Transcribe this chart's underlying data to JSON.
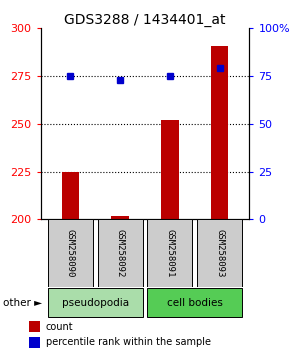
{
  "title": "GDS3288 / 1434401_at",
  "samples": [
    "GSM258090",
    "GSM258092",
    "GSM258091",
    "GSM258093"
  ],
  "counts": [
    225,
    202,
    252,
    291
  ],
  "percentiles": [
    75,
    73,
    75,
    79
  ],
  "ylim_left": [
    200,
    300
  ],
  "ylim_right": [
    0,
    100
  ],
  "yticks_left": [
    200,
    225,
    250,
    275,
    300
  ],
  "yticks_right": [
    0,
    25,
    50,
    75,
    100
  ],
  "ytick_labels_right": [
    "0",
    "25",
    "50",
    "75",
    "100%"
  ],
  "bar_color": "#bb0000",
  "dot_color": "#0000cc",
  "bar_width": 0.35,
  "groups": [
    {
      "label": "pseudopodia",
      "samples": [
        0,
        1
      ],
      "color": "#aaddaa"
    },
    {
      "label": "cell bodies",
      "samples": [
        2,
        3
      ],
      "color": "#55cc55"
    }
  ],
  "other_label": "other ►",
  "legend_count_label": "count",
  "legend_pct_label": "percentile rank within the sample",
  "grid_yticks": [
    225,
    250,
    275
  ],
  "title_fontsize": 10,
  "tick_fontsize": 8,
  "label_fontsize": 6.5,
  "group_fontsize": 7.5,
  "legend_fontsize": 7
}
